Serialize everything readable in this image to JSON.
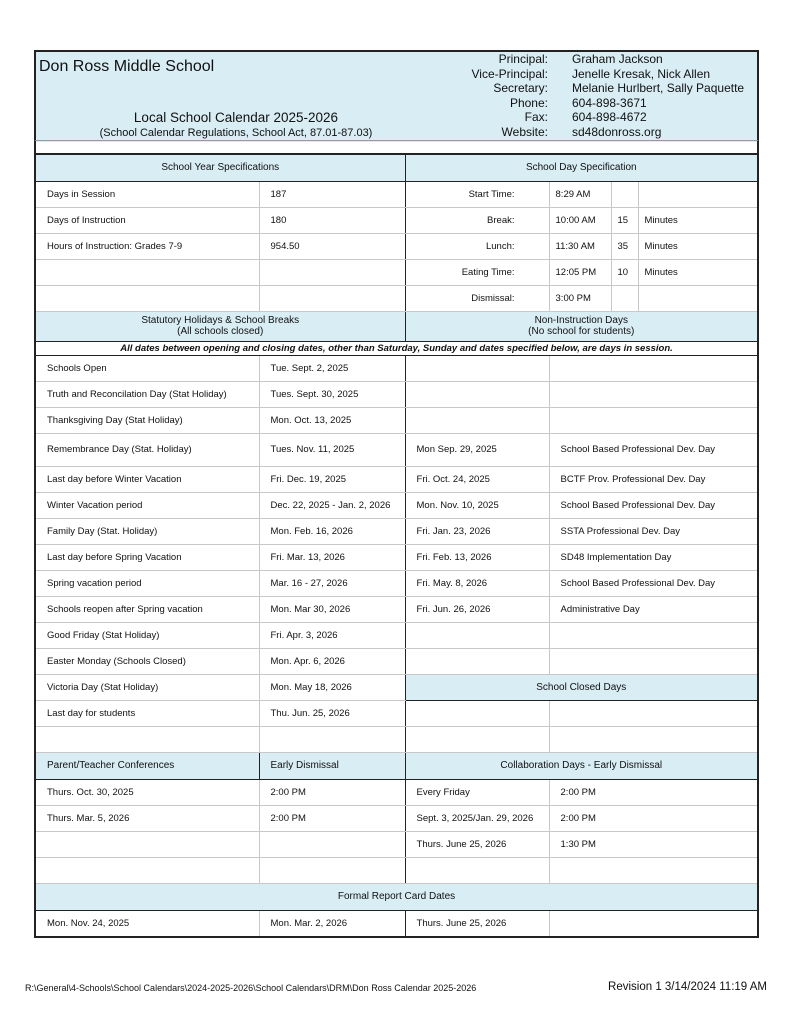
{
  "header": {
    "school": "Don Ross Middle School",
    "calendar_title": "Local School Calendar 2025-2026",
    "regulations": "(School Calendar Regulations, School Act, 87.01-87.03)",
    "contacts": [
      {
        "k": "Principal:",
        "v": "Graham Jackson"
      },
      {
        "k": "Vice-Principal:",
        "v": "Jenelle Kresak, Nick Allen"
      },
      {
        "k": "Secretary:",
        "v": "Melanie Hurlbert, Sally Paquette"
      },
      {
        "k": "Phone:",
        "v": "604-898-3671"
      },
      {
        "k": "Fax:",
        "v": "604-898-4672"
      },
      {
        "k": "Website:",
        "v": "sd48donross.org"
      }
    ]
  },
  "year_spec": {
    "title": "School Year Specifications",
    "rows": [
      [
        "Days in Session",
        "187"
      ],
      [
        "Days of Instruction",
        "180"
      ],
      [
        "Hours of Instruction:  Grades 7-9",
        "954.50"
      ],
      [
        "",
        ""
      ],
      [
        "",
        ""
      ]
    ]
  },
  "day_spec": {
    "title": "School Day Specification",
    "rows": [
      [
        "Start Time:",
        "8:29 AM",
        "",
        ""
      ],
      [
        "Break:",
        "10:00 AM",
        "15",
        "Minutes"
      ],
      [
        "Lunch:",
        "11:30 AM",
        "35",
        "Minutes"
      ],
      [
        "Eating Time:",
        "12:05 PM",
        "10",
        "Minutes"
      ],
      [
        "Dismissal:",
        "3:00 PM",
        "",
        ""
      ]
    ]
  },
  "holidays": {
    "title": "Statutory Holidays & School Breaks",
    "subtitle": "(All schools closed)",
    "rows": [
      [
        "Schools Open",
        "Tue. Sept. 2, 2025"
      ],
      [
        "Truth and Reconcilation Day (Stat Holiday)",
        "Tues. Sept. 30, 2025"
      ],
      [
        "Thanksgiving Day (Stat Holiday)",
        "Mon. Oct. 13, 2025"
      ],
      [
        "Remembrance Day (Stat. Holiday)",
        "Tues. Nov. 11, 2025"
      ],
      [
        "Last day before Winter Vacation",
        "Fri. Dec. 19, 2025"
      ],
      [
        "Winter Vacation period",
        "Dec. 22, 2025 - Jan. 2, 2026"
      ],
      [
        "Family Day (Stat. Holiday)",
        "Mon. Feb. 16, 2026"
      ],
      [
        "Last day before Spring Vacation",
        "Fri. Mar. 13, 2026"
      ],
      [
        "Spring vacation period",
        "Mar. 16 - 27, 2026"
      ],
      [
        "Schools reopen after Spring vacation",
        "Mon. Mar 30, 2026"
      ],
      [
        "Good Friday (Stat Holiday)",
        "Fri. Apr. 3, 2026"
      ],
      [
        "Easter Monday (Schools Closed)",
        "Mon. Apr. 6, 2026"
      ],
      [
        "Victoria Day (Stat Holiday)",
        "Mon. May 18, 2026"
      ],
      [
        "Last day for students",
        "Thu. Jun. 25, 2026"
      ],
      [
        "",
        ""
      ]
    ]
  },
  "non_instruction": {
    "title": "Non-Instruction Days",
    "subtitle": "(No school for students)",
    "rows": [
      [
        "",
        ""
      ],
      [
        "",
        ""
      ],
      [
        "",
        ""
      ],
      [
        "Mon Sep. 29, 2025",
        "School Based Professional Dev. Day"
      ],
      [
        "Fri. Oct. 24, 2025",
        "BCTF Prov. Professional Dev. Day"
      ],
      [
        "Mon. Nov. 10, 2025",
        "School Based Professional Dev. Day"
      ],
      [
        "Fri. Jan. 23, 2026",
        "SSTA Professional Dev. Day"
      ],
      [
        "Fri. Feb. 13, 2026",
        "SD48 Implementation Day"
      ],
      [
        "Fri. May. 8, 2026",
        "School Based Professional Dev. Day"
      ],
      [
        "Fri. Jun. 26, 2026",
        "Administrative Day"
      ],
      [
        "",
        ""
      ],
      [
        "",
        ""
      ]
    ]
  },
  "closed_days": {
    "title": "School Closed Days",
    "rows": [
      [
        "",
        ""
      ],
      [
        "",
        ""
      ]
    ]
  },
  "note": "All dates between opening and closing dates, other than Saturday, Sunday and dates specified below, are days in session.",
  "conferences": {
    "title": "Parent/Teacher Conferences",
    "col2": "Early Dismissal",
    "rows": [
      [
        "Thurs. Oct. 30, 2025",
        "2:00 PM"
      ],
      [
        "Thurs. Mar. 5, 2026",
        "2:00 PM"
      ],
      [
        "",
        ""
      ],
      [
        "",
        ""
      ]
    ]
  },
  "collaboration": {
    "title": "Collaboration Days - Early Dismissal",
    "rows": [
      [
        "Every Friday",
        "2:00 PM"
      ],
      [
        "Sept. 3, 2025/Jan. 29, 2026",
        "2:00 PM"
      ],
      [
        "Thurs. June 25, 2026",
        "1:30 PM"
      ],
      [
        "",
        ""
      ]
    ]
  },
  "report_cards": {
    "title": "Formal Report Card Dates",
    "dates": [
      "Mon. Nov. 24, 2025",
      "Mon. Mar. 2, 2026",
      "Thurs. June 25, 2026",
      ""
    ]
  },
  "footer": {
    "path": "R:\\General\\4-Schools\\School Calendars\\2024-2025-2026\\School Calendars\\DRM\\Don Ross Calendar 2025-2026",
    "revision": "Revision 1 3/14/2024 11:19 AM"
  },
  "colors": {
    "header_bg": "#d9edf4",
    "border": "#222222"
  }
}
